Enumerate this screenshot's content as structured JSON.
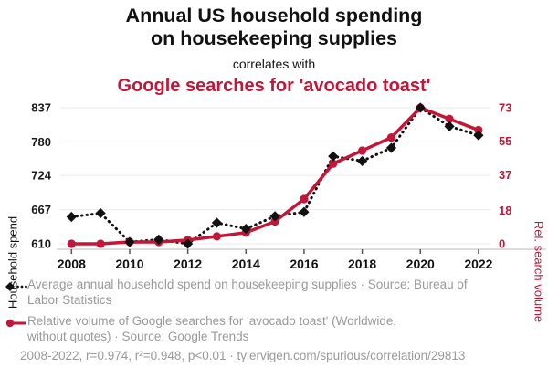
{
  "header": {
    "title_line1": "Annual US household spending",
    "title_line2": "on housekeeping supplies",
    "subtitle": "correlates with",
    "red_title": "Google searches for 'avocado toast'"
  },
  "colors": {
    "accent_red": "#c21738",
    "series_black": "#111111",
    "grid": "#e9e9e9",
    "axis_line": "#bbbbbb",
    "tick_mark": "#555555",
    "muted_text": "#999999"
  },
  "chart_data": {
    "type": "line",
    "x": [
      2008,
      2009,
      2010,
      2011,
      2012,
      2013,
      2014,
      2015,
      2016,
      2017,
      2018,
      2019,
      2020,
      2021,
      2022
    ],
    "series": [
      {
        "name": "Average annual household spend on housekeeping supplies",
        "axis": "left",
        "color": "#111111",
        "marker": "diamond",
        "line_style": "dotted",
        "values": [
          655,
          661,
          613,
          617,
          610,
          645,
          635,
          656,
          663,
          756,
          748,
          770,
          837,
          806,
          791
        ]
      },
      {
        "name": "Relative volume of Google searches for 'avocado toast'",
        "axis": "right",
        "color": "#c21738",
        "marker": "circle",
        "line_style": "solid",
        "values": [
          0,
          0,
          1,
          1,
          2,
          4,
          6,
          12,
          24,
          43,
          50,
          57,
          73,
          67,
          61
        ]
      }
    ],
    "left_axis": {
      "label": "Household spend",
      "ticks": [
        610,
        667,
        724,
        780,
        837
      ],
      "range": [
        610,
        837
      ]
    },
    "right_axis": {
      "label": "Rel. search volume",
      "ticks": [
        0,
        18,
        37,
        55,
        73
      ],
      "range": [
        0,
        73
      ]
    },
    "x_ticks": [
      2008,
      2010,
      2012,
      2014,
      2016,
      2018,
      2020,
      2022
    ],
    "grid": true,
    "legend_position": "bottom"
  },
  "legend": {
    "items": [
      {
        "icon": "black-diamond-dotted-line-icon",
        "text": "Average annual household spend on housekeeping supplies · Source: Bureau of\nLabor Statistics"
      },
      {
        "icon": "red-circle-solid-line-icon",
        "text": "Relative volume of Google searches for 'avocado toast' (Worldwide,\nwithout quotes) · Source: Google Trends"
      }
    ]
  },
  "footer": {
    "stats": "2008-2022, r=0.974, r²=0.948, p<0.01 · tylervigen.com/spurious/correlation/29813"
  }
}
